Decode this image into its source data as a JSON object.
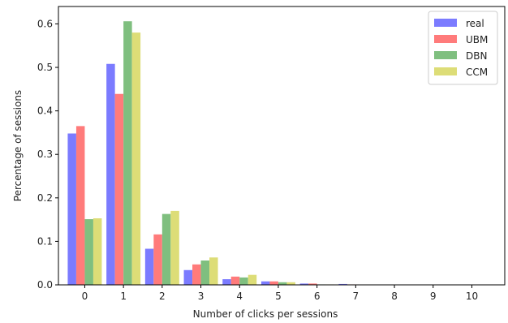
{
  "chart_data": {
    "type": "bar",
    "xlabel": "Number of clicks per sessions",
    "ylabel": "Percentage of sessions",
    "categories": [
      "0",
      "1",
      "2",
      "3",
      "4",
      "5",
      "6",
      "7",
      "8",
      "9",
      "10"
    ],
    "ylim": [
      0,
      0.64
    ],
    "yticks": [
      0.0,
      0.1,
      0.2,
      0.3,
      0.4,
      0.5,
      0.6
    ],
    "ytick_labels": [
      "0.0",
      "0.1",
      "0.2",
      "0.3",
      "0.4",
      "0.5",
      "0.6"
    ],
    "legend_position": "top-right",
    "grid": false,
    "series": [
      {
        "name": "real",
        "color": "#7b7bff",
        "values": [
          0.348,
          0.508,
          0.083,
          0.034,
          0.013,
          0.008,
          0.003,
          0.002,
          0.0,
          0.0,
          0.0
        ]
      },
      {
        "name": "UBM",
        "color": "#ff7b7b",
        "values": [
          0.365,
          0.439,
          0.116,
          0.047,
          0.019,
          0.008,
          0.003,
          0.001,
          0.0,
          0.0,
          0.0
        ]
      },
      {
        "name": "DBN",
        "color": "#7fbf7f",
        "values": [
          0.151,
          0.606,
          0.163,
          0.056,
          0.017,
          0.006,
          0.001,
          0.0,
          0.0,
          0.0,
          0.0
        ]
      },
      {
        "name": "CCM",
        "color": "#dddd77",
        "values": [
          0.153,
          0.58,
          0.17,
          0.063,
          0.023,
          0.006,
          0.001,
          0.0,
          0.0,
          0.0,
          0.0
        ]
      }
    ]
  }
}
